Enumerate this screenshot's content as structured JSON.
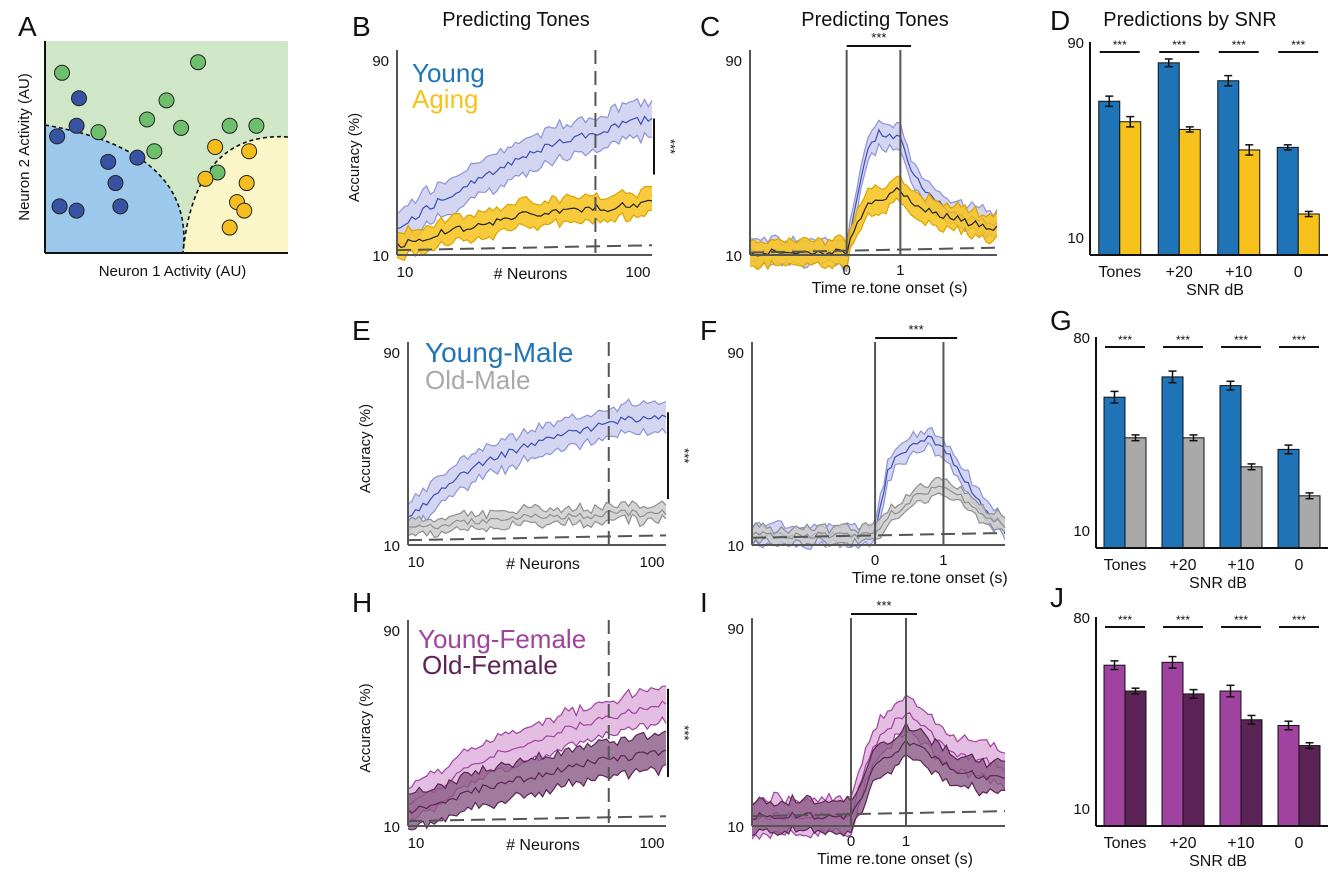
{
  "colors": {
    "young": "#1f74b8",
    "young_band": "#8b93d8",
    "young_band_fill": "#c9cbec",
    "aging": "#f7c21b",
    "old_male": "#a9a9a9",
    "old_male_fill": "#c9c9c9",
    "young_female": "#a0429f",
    "young_female_fill": "#dcaedb",
    "old_female": "#5c2456",
    "old_female_fill": "#8a5a86",
    "green_region": "#cfe6c7",
    "blue_region": "#9cc9eb",
    "yellow_region": "#fbf6c8",
    "green_dot": "#6dbf6b",
    "blue_dot": "#3953a4",
    "yellow_dot": "#f6bd1e"
  },
  "panel_letters": [
    "A",
    "B",
    "C",
    "D",
    "E",
    "F",
    "G",
    "H",
    "I",
    "J"
  ],
  "titles": {
    "B": "Predicting Tones",
    "C": "Predicting Tones",
    "D": "Predictions by SNR"
  },
  "significance": "***",
  "chart_data": [
    {
      "panel": "A",
      "type": "scatter",
      "xlabel": "Neuron 1 Activity (AU)",
      "ylabel": "Neuron 2 Activity (AU)",
      "series": [
        {
          "color": "green",
          "x": [
            0.42,
            0.07,
            0.22,
            0.45,
            0.63,
            0.5,
            0.56,
            0.76,
            0.71,
            0.87
          ],
          "y": [
            0.63,
            0.85,
            0.57,
            0.48,
            0.9,
            0.72,
            0.59,
            0.6,
            0.38,
            0.6
          ]
        },
        {
          "color": "blue",
          "x": [
            0.14,
            0.05,
            0.13,
            0.26,
            0.38,
            0.29,
            0.13,
            0.06,
            0.31
          ],
          "y": [
            0.73,
            0.55,
            0.6,
            0.43,
            0.45,
            0.33,
            0.2,
            0.22,
            0.22
          ]
        },
        {
          "color": "yellow",
          "x": [
            0.7,
            0.84,
            0.66,
            0.83,
            0.79,
            0.82,
            0.76
          ],
          "y": [
            0.5,
            0.48,
            0.35,
            0.33,
            0.24,
            0.2,
            0.12
          ]
        }
      ]
    },
    {
      "panel": "B",
      "type": "line",
      "xscale": "log",
      "xlabel": "# Neurons",
      "ylabel": "Accuracy (%)",
      "xticks": [
        "10",
        "100"
      ],
      "yticks": [
        "10",
        "90"
      ],
      "ylim": [
        10,
        90
      ],
      "xlim": [
        10,
        100
      ],
      "vline_x": 60,
      "chance": 12,
      "series": [
        {
          "name": "Young",
          "color": "young",
          "band": true,
          "x": [
            10,
            15,
            20,
            30,
            40,
            50,
            60,
            70,
            80,
            90,
            100
          ],
          "y": [
            22,
            33,
            40,
            50,
            55,
            58,
            60,
            62,
            65,
            65,
            66
          ],
          "err": 7
        },
        {
          "name": "Aging",
          "color": "aging",
          "band": true,
          "x": [
            10,
            15,
            20,
            30,
            40,
            50,
            60,
            70,
            80,
            90,
            100
          ],
          "y": [
            14,
            19,
            22,
            26,
            28,
            28,
            30,
            29,
            31,
            31,
            31
          ],
          "err": 5
        }
      ],
      "sig_bracket": {
        "y_low": 43,
        "y_high": 66,
        "label": "***"
      }
    },
    {
      "panel": "C",
      "type": "line",
      "xlabel": "Time re.tone onset (s)",
      "xticks": [
        "0",
        "1"
      ],
      "yticks": [
        "10",
        "90"
      ],
      "ylim": [
        10,
        90
      ],
      "xlim": [
        -1.8,
        2.8
      ],
      "vlines": [
        0,
        1
      ],
      "chance": 11,
      "sig_bar": {
        "x0": 0,
        "x1": 1.2,
        "label": "***"
      },
      "series": [
        {
          "name": "Young",
          "color": "young",
          "x": [
            -1.8,
            -0.5,
            -0.2,
            0,
            0.2,
            0.4,
            0.6,
            0.8,
            1.0,
            1.2,
            1.5,
            2.0,
            2.5,
            2.8
          ],
          "y": [
            11,
            11,
            11,
            11,
            35,
            53,
            60,
            59,
            58,
            45,
            35,
            27,
            24,
            23
          ],
          "err": 5
        },
        {
          "name": "Aging",
          "color": "aging",
          "x": [
            -1.8,
            -0.5,
            -0.2,
            0,
            0.2,
            0.4,
            0.6,
            0.8,
            1.0,
            1.2,
            1.5,
            2.0,
            2.5,
            2.8
          ],
          "y": [
            11,
            11,
            11,
            11,
            24,
            30,
            32,
            35,
            37,
            32,
            28,
            25,
            22,
            21
          ],
          "err": 5
        }
      ]
    },
    {
      "panel": "D",
      "type": "bar",
      "xlabel": "SNR dB",
      "categories": [
        "Tones",
        "+20",
        "+10",
        "0"
      ],
      "yticks": [
        "10",
        "90"
      ],
      "ylim": [
        10,
        90
      ],
      "series": [
        {
          "name": "Young",
          "color": "young",
          "values": [
            70,
            85,
            78,
            52
          ],
          "err": [
            2,
            1.5,
            2,
            1
          ]
        },
        {
          "name": "Aging",
          "color": "aging",
          "values": [
            62,
            59,
            51,
            26
          ],
          "err": [
            2,
            1,
            2,
            1
          ]
        }
      ],
      "sig_labels": [
        "***",
        "***",
        "***",
        "***"
      ]
    },
    {
      "panel": "E",
      "type": "line",
      "xscale": "log",
      "xlabel": "# Neurons",
      "ylabel": "Accuracy (%)",
      "xticks": [
        "10",
        "100"
      ],
      "yticks": [
        "10",
        "90"
      ],
      "ylim": [
        10,
        90
      ],
      "xlim": [
        10,
        100
      ],
      "vline_x": 60,
      "chance": 12,
      "series": [
        {
          "name": "Young-Male",
          "color": "young",
          "x": [
            10,
            15,
            20,
            30,
            40,
            50,
            60,
            70,
            80,
            90,
            100
          ],
          "y": [
            22,
            37,
            45,
            52,
            56,
            58,
            61,
            62,
            62,
            63,
            64
          ],
          "err": 6
        },
        {
          "name": "Old-Male",
          "color": "old_male",
          "x": [
            10,
            15,
            20,
            30,
            40,
            50,
            60,
            70,
            80,
            90,
            100
          ],
          "y": [
            17,
            19,
            20,
            22,
            22,
            22,
            23,
            23,
            23,
            23,
            24
          ],
          "err": 3
        }
      ],
      "sig_bracket": {
        "y_low": 29,
        "y_high": 65,
        "label": "***"
      }
    },
    {
      "panel": "F",
      "type": "line",
      "xlabel": "Time re.tone onset (s)",
      "xticks": [
        "0",
        "1"
      ],
      "yticks": [
        "10",
        "90"
      ],
      "ylim": [
        10,
        90
      ],
      "xlim": [
        -1.8,
        1.9
      ],
      "vlines": [
        0,
        1
      ],
      "chance": 13,
      "sig_bar": {
        "x0": 0,
        "x1": 1.2,
        "label": "***"
      },
      "series": [
        {
          "name": "Young-Male",
          "color": "young",
          "x": [
            -1.8,
            -0.5,
            -0.2,
            0,
            0.2,
            0.4,
            0.6,
            0.8,
            1.0,
            1.2,
            1.4,
            1.6,
            1.9
          ],
          "y": [
            14,
            14,
            14,
            14,
            42,
            49,
            52,
            54,
            51,
            42,
            33,
            24,
            18
          ],
          "err": 4
        },
        {
          "name": "Old-Male",
          "color": "old_male",
          "x": [
            -1.8,
            -0.5,
            -0.2,
            0,
            0.2,
            0.4,
            0.6,
            0.8,
            1.0,
            1.2,
            1.4,
            1.6,
            1.9
          ],
          "y": [
            14,
            14,
            14,
            14,
            22,
            26,
            30,
            33,
            33,
            31,
            27,
            22,
            18
          ],
          "err": 3
        }
      ]
    },
    {
      "panel": "G",
      "type": "bar",
      "xlabel": "SNR dB",
      "categories": [
        "Tones",
        "+20",
        "+10",
        "0"
      ],
      "yticks": [
        "10",
        "80"
      ],
      "ylim": [
        10,
        80
      ],
      "series": [
        {
          "name": "Young-Male",
          "color": "young",
          "values": [
            62,
            69,
            66,
            44
          ],
          "err": [
            2,
            2,
            1.5,
            1.5
          ]
        },
        {
          "name": "Old-Male",
          "color": "old_male",
          "values": [
            48,
            48,
            38,
            28
          ],
          "err": [
            1,
            1,
            1,
            1
          ]
        }
      ],
      "sig_labels": [
        "***",
        "***",
        "***",
        "***"
      ]
    },
    {
      "panel": "H",
      "type": "line",
      "xscale": "log",
      "xlabel": "# Neurons",
      "ylabel": "Accuracy (%)",
      "xticks": [
        "10",
        "100"
      ],
      "yticks": [
        "10",
        "90"
      ],
      "ylim": [
        10,
        90
      ],
      "xlim": [
        10,
        100
      ],
      "vline_x": 60,
      "chance": 12,
      "series": [
        {
          "name": "Young-Female",
          "color": "young_female",
          "x": [
            10,
            15,
            20,
            30,
            40,
            50,
            60,
            70,
            80,
            90,
            100
          ],
          "y": [
            19,
            30,
            38,
            44,
            49,
            52,
            54,
            56,
            58,
            59,
            60
          ],
          "err": 7
        },
        {
          "name": "Old-Female",
          "color": "old_female",
          "x": [
            10,
            15,
            20,
            30,
            40,
            50,
            60,
            70,
            80,
            90,
            100
          ],
          "y": [
            16,
            21,
            26,
            30,
            33,
            36,
            37,
            38,
            39,
            40,
            40
          ],
          "err": 7
        }
      ],
      "sig_bracket": {
        "y_low": 30,
        "y_high": 66,
        "label": "***"
      }
    },
    {
      "panel": "I",
      "type": "line",
      "xlabel": "Time re.tone onset (s)",
      "xticks": [
        "0",
        "1"
      ],
      "yticks": [
        "10",
        "90"
      ],
      "ylim": [
        10,
        90
      ],
      "xlim": [
        -1.8,
        2.8
      ],
      "vlines": [
        0,
        1
      ],
      "chance": 14,
      "sig_bar": {
        "x0": 0,
        "x1": 1.2,
        "label": "***"
      },
      "series": [
        {
          "name": "Young-Female",
          "color": "young_female",
          "x": [
            -1.8,
            -0.5,
            -0.2,
            0,
            0.2,
            0.4,
            0.6,
            0.8,
            1.0,
            1.2,
            1.5,
            2.0,
            2.5,
            2.8
          ],
          "y": [
            14,
            14,
            14,
            14,
            30,
            42,
            48,
            52,
            55,
            53,
            46,
            38,
            36,
            33
          ],
          "err": 7
        },
        {
          "name": "Old-Female",
          "color": "old_female",
          "x": [
            -1.8,
            -0.5,
            -0.2,
            0,
            0.2,
            0.4,
            0.6,
            0.8,
            1.0,
            1.2,
            1.5,
            2.0,
            2.5,
            2.8
          ],
          "y": [
            14,
            14,
            14,
            14,
            22,
            32,
            38,
            40,
            44,
            42,
            38,
            32,
            30,
            28
          ],
          "err": 6
        }
      ]
    },
    {
      "panel": "J",
      "type": "bar",
      "xlabel": "SNR dB",
      "categories": [
        "Tones",
        "+20",
        "+10",
        "0"
      ],
      "yticks": [
        "10",
        "80"
      ],
      "ylim": [
        10,
        80
      ],
      "series": [
        {
          "name": "Young-Female",
          "color": "young_female",
          "values": [
            66,
            67,
            57,
            45
          ],
          "err": [
            1.5,
            2,
            2,
            1.5
          ]
        },
        {
          "name": "Old-Female",
          "color": "old_female",
          "values": [
            57,
            56,
            47,
            38
          ],
          "err": [
            1,
            1.5,
            1.5,
            1
          ]
        }
      ],
      "sig_labels": [
        "***",
        "***",
        "***",
        "***"
      ]
    }
  ]
}
